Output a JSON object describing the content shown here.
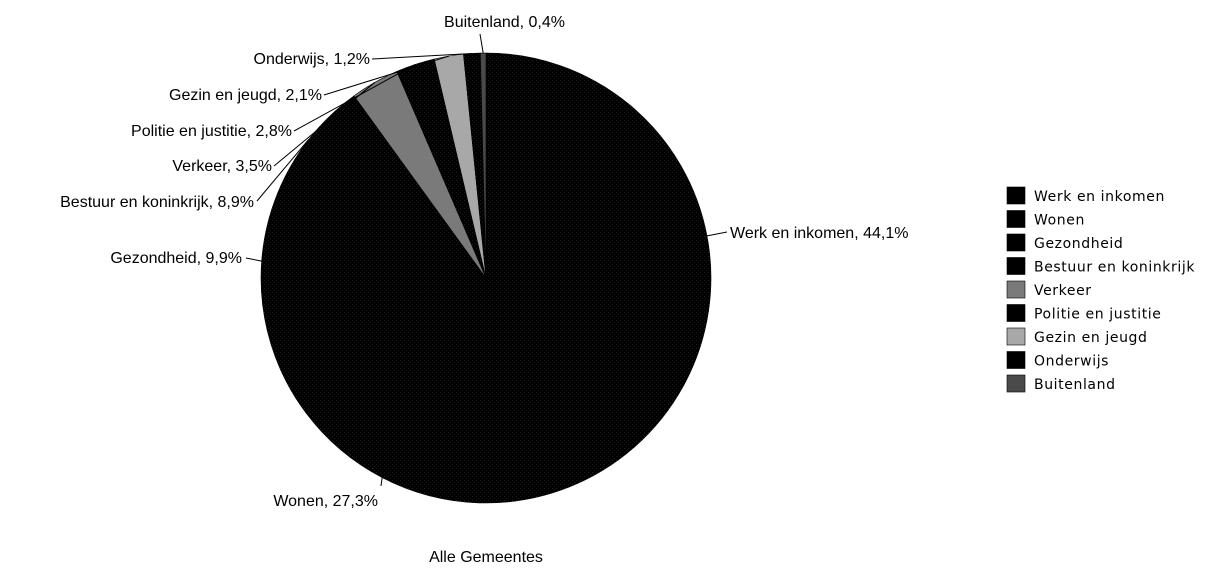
{
  "chart_data": {
    "type": "pie",
    "title": "",
    "caption": "Alle Gemeentes",
    "legend_position": "right",
    "slices": [
      {
        "label": "Werk en inkomen",
        "value": 44.1,
        "display": "44,1%",
        "color": "#000000"
      },
      {
        "label": "Wonen",
        "value": 27.3,
        "display": "27,3%",
        "color": "#000000"
      },
      {
        "label": "Gezondheid",
        "value": 9.9,
        "display": "9,9%",
        "color": "#000000"
      },
      {
        "label": "Bestuur en koninkrijk",
        "value": 8.9,
        "display": "8,9%",
        "color": "#000000"
      },
      {
        "label": "Verkeer",
        "value": 3.5,
        "display": "3,5%",
        "color": "#7a7a7a"
      },
      {
        "label": "Politie en justitie",
        "value": 2.8,
        "display": "2,8%",
        "color": "#000000"
      },
      {
        "label": "Gezin en jeugd",
        "value": 2.1,
        "display": "2,1%",
        "color": "#a8a8a8"
      },
      {
        "label": "Onderwijs",
        "value": 1.2,
        "display": "1,2%",
        "color": "#000000"
      },
      {
        "label": "Buitenland",
        "value": 0.4,
        "display": "0,4%",
        "color": "#4a4a4a"
      }
    ]
  }
}
